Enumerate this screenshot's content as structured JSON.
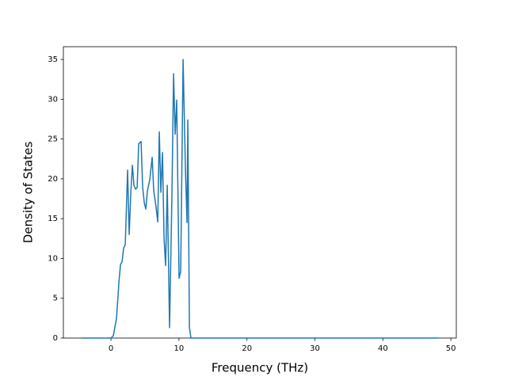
{
  "chart_data": {
    "type": "line",
    "x_label": "Frequency (THz)",
    "y_label": "Density of States",
    "x": [
      -4.3,
      0,
      0.35,
      0.82,
      1.17,
      1.4,
      1.63,
      1.86,
      2.1,
      2.45,
      2.68,
      2.91,
      3.15,
      3.38,
      3.61,
      3.85,
      4.08,
      4.43,
      4.66,
      4.9,
      5.13,
      5.36,
      5.71,
      6.06,
      6.29,
      6.64,
      6.88,
      7.11,
      7.34,
      7.58,
      7.81,
      8.04,
      8.28,
      8.62,
      8.97,
      9.21,
      9.44,
      9.67,
      10.02,
      10.26,
      10.61,
      10.96,
      11.19,
      11.31,
      11.54,
      11.77,
      48.1
    ],
    "series": [
      {
        "color": "#1f77b4",
        "values": [
          0,
          0,
          0.3,
          2.5,
          7,
          9.2,
          9.6,
          11.3,
          11.7,
          21.1,
          13,
          18,
          21.7,
          19.2,
          18.7,
          18.9,
          24.4,
          24.7,
          19,
          17,
          16.2,
          18.5,
          19.9,
          22.7,
          18.5,
          16.4,
          14.6,
          25.9,
          18.3,
          23.3,
          12.5,
          9.1,
          19.2,
          1.3,
          18,
          33.2,
          25.6,
          29.9,
          7.5,
          8.4,
          35,
          21,
          14.5,
          27.4,
          1.3,
          0,
          0
        ]
      }
    ],
    "xlim": [
      -7,
      50.8
    ],
    "ylim": [
      0,
      36.6
    ],
    "xticks": [
      0,
      10,
      20,
      30,
      40,
      50
    ],
    "yticks": [
      0,
      5,
      10,
      15,
      20,
      25,
      30,
      35
    ]
  }
}
